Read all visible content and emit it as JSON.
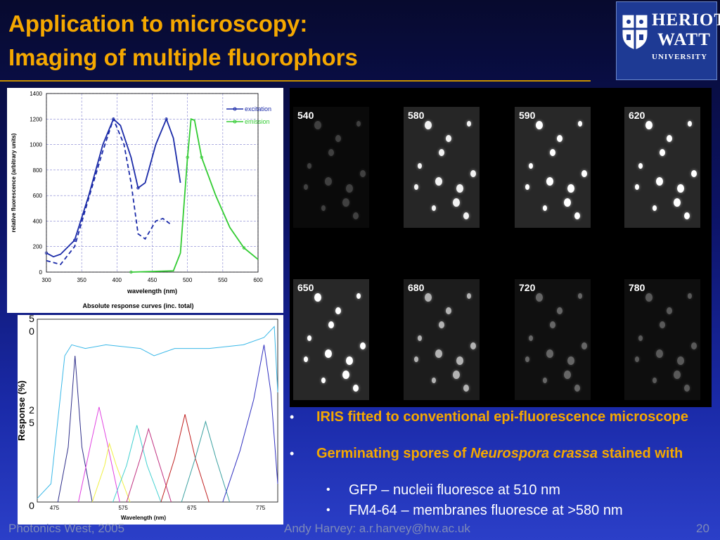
{
  "slide": {
    "title_line1": "Application to microscopy:",
    "title_line2": "Imaging of multiple fluorophors"
  },
  "logo": {
    "line1": "HERIOT",
    "line2": "WATT",
    "line3": "UNIVERSITY",
    "icon": "university-crest-icon"
  },
  "figure_top": {
    "ylabel": "relative fluorescence (arbitrary units)",
    "xlabel": "wavelength (nm)",
    "caption": "Absolute response curves (inc. total)",
    "legend": [
      "excitation",
      "emission"
    ]
  },
  "figure_bottom": {
    "ylabel": "Response (%)",
    "xlabel": "Wavelength (nm)",
    "y_tick_labels": [
      "50",
      "25",
      "0"
    ],
    "x_tick_labels": [
      "475",
      "575",
      "675",
      "775"
    ]
  },
  "chart_data": [
    {
      "type": "line",
      "x": [
        300,
        320,
        340,
        360,
        380,
        395,
        400,
        420,
        430,
        440,
        460,
        470,
        480,
        490,
        500,
        505,
        510,
        520,
        540,
        560,
        580,
        600
      ],
      "xlim": [
        300,
        600
      ],
      "ylim": [
        0,
        1400
      ],
      "x_ticks": [
        300,
        350,
        400,
        450,
        500,
        550,
        600
      ],
      "y_ticks": [
        0,
        200,
        400,
        600,
        800,
        1000,
        1200,
        1400
      ],
      "xlabel": "wavelength (nm)",
      "ylabel": "relative fluorescence (arbitrary units)",
      "grid": true,
      "legend_position": "top-right",
      "series": [
        {
          "name": "excitation",
          "color": "#1a2aa8",
          "points": [
            [
              300,
              150
            ],
            [
              310,
              120
            ],
            [
              320,
              140
            ],
            [
              340,
              250
            ],
            [
              360,
              600
            ],
            [
              380,
              1000
            ],
            [
              395,
              1200
            ],
            [
              405,
              1150
            ],
            [
              420,
              900
            ],
            [
              430,
              660
            ],
            [
              440,
              700
            ],
            [
              455,
              1000
            ],
            [
              470,
              1200
            ],
            [
              480,
              1050
            ],
            [
              490,
              700
            ]
          ]
        },
        {
          "name": "excitation (dashed)",
          "color": "#1a2aa8",
          "points": [
            [
              300,
              90
            ],
            [
              320,
              60
            ],
            [
              340,
              200
            ],
            [
              360,
              580
            ],
            [
              380,
              950
            ],
            [
              395,
              1200
            ],
            [
              410,
              1000
            ],
            [
              420,
              700
            ],
            [
              430,
              300
            ],
            [
              440,
              260
            ],
            [
              455,
              400
            ],
            [
              465,
              420
            ],
            [
              475,
              380
            ]
          ]
        },
        {
          "name": "emission",
          "color": "#33cc33",
          "points": [
            [
              420,
              0
            ],
            [
              480,
              10
            ],
            [
              490,
              150
            ],
            [
              500,
              900
            ],
            [
              505,
              1200
            ],
            [
              510,
              1190
            ],
            [
              520,
              900
            ],
            [
              540,
              600
            ],
            [
              560,
              350
            ],
            [
              580,
              190
            ],
            [
              600,
              100
            ]
          ]
        }
      ]
    },
    {
      "type": "line",
      "xlim": [
        450,
        800
      ],
      "ylim": [
        0,
        50
      ],
      "x_ticks": [
        475,
        575,
        675,
        775
      ],
      "y_ticks": [
        0,
        25,
        50
      ],
      "xlabel": "Wavelength (nm)",
      "ylabel": "Response (%)",
      "series": [
        {
          "color": "#39b8e8",
          "points": [
            [
              450,
              1
            ],
            [
              470,
              5
            ],
            [
              490,
              40
            ],
            [
              500,
              43
            ],
            [
              520,
              42
            ],
            [
              550,
              43
            ],
            [
              600,
              42
            ],
            [
              620,
              40
            ],
            [
              650,
              42
            ],
            [
              700,
              42
            ],
            [
              750,
              43
            ],
            [
              780,
              45
            ],
            [
              795,
              48
            ],
            [
              800,
              30
            ]
          ]
        },
        {
          "color": "#30308a",
          "points": [
            [
              480,
              0
            ],
            [
              495,
              15
            ],
            [
              505,
              40
            ],
            [
              515,
              15
            ],
            [
              530,
              0
            ]
          ]
        },
        {
          "color": "#e040e0",
          "points": [
            [
              510,
              0
            ],
            [
              528,
              16
            ],
            [
              540,
              26
            ],
            [
              552,
              16
            ],
            [
              570,
              0
            ]
          ]
        },
        {
          "color": "#f0f040",
          "points": [
            [
              530,
              0
            ],
            [
              548,
              10
            ],
            [
              555,
              16
            ],
            [
              565,
              10
            ],
            [
              585,
              0
            ]
          ]
        },
        {
          "color": "#40d0d0",
          "points": [
            [
              560,
              0
            ],
            [
              580,
              10
            ],
            [
              595,
              21
            ],
            [
              610,
              10
            ],
            [
              630,
              0
            ]
          ]
        },
        {
          "color": "#c03080",
          "points": [
            [
              580,
              0
            ],
            [
              600,
              12
            ],
            [
              612,
              20
            ],
            [
              625,
              12
            ],
            [
              645,
              0
            ]
          ]
        },
        {
          "color": "#c02020",
          "points": [
            [
              630,
              0
            ],
            [
              650,
              12
            ],
            [
              665,
              24
            ],
            [
              680,
              12
            ],
            [
              700,
              0
            ]
          ]
        },
        {
          "color": "#3aa0a0",
          "points": [
            [
              660,
              0
            ],
            [
              680,
              12
            ],
            [
              695,
              22
            ],
            [
              710,
              12
            ],
            [
              730,
              0
            ]
          ]
        },
        {
          "color": "#3030c0",
          "points": [
            [
              720,
              0
            ],
            [
              745,
              14
            ],
            [
              765,
              28
            ],
            [
              780,
              43
            ],
            [
              790,
              30
            ],
            [
              800,
              5
            ]
          ]
        }
      ]
    }
  ],
  "micrographs": {
    "row1": [
      "540",
      "580",
      "590",
      "620"
    ],
    "row2": [
      "650",
      "680",
      "720",
      "780"
    ]
  },
  "bullets": [
    {
      "level": 1,
      "text": "IRIS fitted to conventional epi-fluorescence microscope"
    },
    {
      "level": 1,
      "text_before": "Germinating spores of ",
      "text_italic": "Neurospora crassa",
      "text_after": " stained with"
    },
    {
      "level": 2,
      "text": "GFP – nucleii fluoresce at 510 nm"
    },
    {
      "level": 2,
      "text": "FM4-64 – membranes fluoresce at >580 nm"
    }
  ],
  "footer": {
    "left": "Photonics West, 2005",
    "center": "Andy Harvey: a.r.harvey@hw.ac.uk",
    "page": "20"
  }
}
